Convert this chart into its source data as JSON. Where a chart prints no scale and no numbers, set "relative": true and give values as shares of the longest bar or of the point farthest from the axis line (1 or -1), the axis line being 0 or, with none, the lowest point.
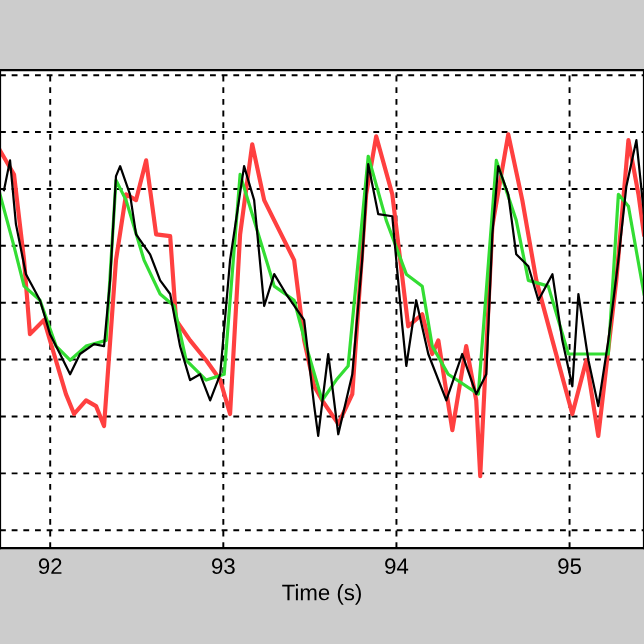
{
  "chart_data": {
    "type": "line",
    "xlabel": "Time (s)",
    "relative": true,
    "xlim": [
      91.71,
      95.43
    ],
    "xticks": [
      92,
      93,
      94,
      95
    ],
    "tick_labels": "x",
    "grid": true,
    "line_style": "solid",
    "marker": "none",
    "series": [
      {
        "color": "#ff4040",
        "x": [
          91.71,
          91.791,
          91.849,
          91.883,
          91.964,
          92.022,
          92.091,
          92.138,
          92.207,
          92.265,
          92.311,
          92.38,
          92.438,
          92.496,
          92.554,
          92.612,
          92.693,
          92.727,
          92.808,
          92.901,
          92.982,
          93.039,
          93.097,
          93.167,
          93.236,
          93.294,
          93.409,
          93.467,
          93.525,
          93.571,
          93.664,
          93.745,
          93.825,
          93.883,
          93.976,
          94.068,
          94.149,
          94.207,
          94.242,
          94.323,
          94.403,
          94.461,
          94.484,
          94.554,
          94.646,
          94.727,
          94.808,
          94.901,
          95.016,
          95.097,
          95.166,
          95.27,
          95.34,
          95.398,
          95.43
        ],
        "values": [
          0.961,
          0.903,
          0.696,
          0.517,
          0.551,
          0.469,
          0.372,
          0.324,
          0.357,
          0.343,
          0.295,
          0.696,
          0.855,
          0.841,
          0.937,
          0.758,
          0.754,
          0.551,
          0.502,
          0.454,
          0.406,
          0.324,
          0.758,
          0.976,
          0.841,
          0.792,
          0.696,
          0.502,
          0.391,
          0.357,
          0.3,
          0.372,
          0.855,
          0.995,
          0.855,
          0.536,
          0.565,
          0.469,
          0.502,
          0.285,
          0.488,
          0.357,
          0.174,
          0.778,
          1.0,
          0.841,
          0.647,
          0.502,
          0.324,
          0.454,
          0.271,
          0.647,
          0.986,
          0.855,
          0.758
        ]
      },
      {
        "color": "#33dd33",
        "x": [
          91.71,
          91.791,
          91.849,
          91.941,
          92.034,
          92.115,
          92.207,
          92.323,
          92.38,
          92.438,
          92.542,
          92.635,
          92.716,
          92.785,
          92.901,
          93.005,
          93.097,
          93.213,
          93.294,
          93.409,
          93.479,
          93.571,
          93.652,
          93.721,
          93.837,
          93.941,
          94.057,
          94.149,
          94.207,
          94.299,
          94.473,
          94.577,
          94.692,
          94.762,
          94.877,
          94.993,
          95.109,
          95.224,
          95.282,
          95.34,
          95.43
        ],
        "values": [
          0.855,
          0.729,
          0.633,
          0.599,
          0.488,
          0.454,
          0.488,
          0.502,
          0.889,
          0.841,
          0.696,
          0.614,
          0.585,
          0.454,
          0.406,
          0.42,
          0.903,
          0.744,
          0.633,
          0.599,
          0.488,
          0.357,
          0.406,
          0.44,
          0.947,
          0.792,
          0.662,
          0.633,
          0.488,
          0.42,
          0.372,
          0.937,
          0.792,
          0.647,
          0.633,
          0.469,
          0.469,
          0.469,
          0.855,
          0.826,
          0.614
        ]
      },
      {
        "color": "#000000",
        "x": [
          91.733,
          91.768,
          91.802,
          91.86,
          91.941,
          91.999,
          92.057,
          92.115,
          92.172,
          92.253,
          92.311,
          92.346,
          92.38,
          92.404,
          92.461,
          92.496,
          92.577,
          92.635,
          92.693,
          92.75,
          92.808,
          92.866,
          92.924,
          92.982,
          93.039,
          93.12,
          93.178,
          93.236,
          93.294,
          93.363,
          93.467,
          93.525,
          93.548,
          93.606,
          93.664,
          93.745,
          93.802,
          93.837,
          93.895,
          93.976,
          94.034,
          94.057,
          94.114,
          94.184,
          94.288,
          94.38,
          94.461,
          94.519,
          94.554,
          94.588,
          94.646,
          94.692,
          94.762,
          94.82,
          94.901,
          94.958,
          95.016,
          95.051,
          95.109,
          95.166,
          95.224,
          95.282,
          95.328,
          95.386,
          95.43
        ],
        "values": [
          0.865,
          0.937,
          0.783,
          0.662,
          0.599,
          0.517,
          0.469,
          0.42,
          0.469,
          0.493,
          0.488,
          0.647,
          0.899,
          0.923,
          0.855,
          0.758,
          0.71,
          0.647,
          0.614,
          0.488,
          0.406,
          0.42,
          0.357,
          0.42,
          0.696,
          0.923,
          0.841,
          0.585,
          0.662,
          0.614,
          0.551,
          0.343,
          0.271,
          0.469,
          0.275,
          0.42,
          0.696,
          0.928,
          0.807,
          0.802,
          0.536,
          0.44,
          0.599,
          0.469,
          0.357,
          0.469,
          0.372,
          0.42,
          0.758,
          0.923,
          0.855,
          0.71,
          0.681,
          0.599,
          0.662,
          0.502,
          0.391,
          0.614,
          0.454,
          0.343,
          0.502,
          0.696,
          0.874,
          0.986,
          0.807
        ]
      }
    ]
  }
}
